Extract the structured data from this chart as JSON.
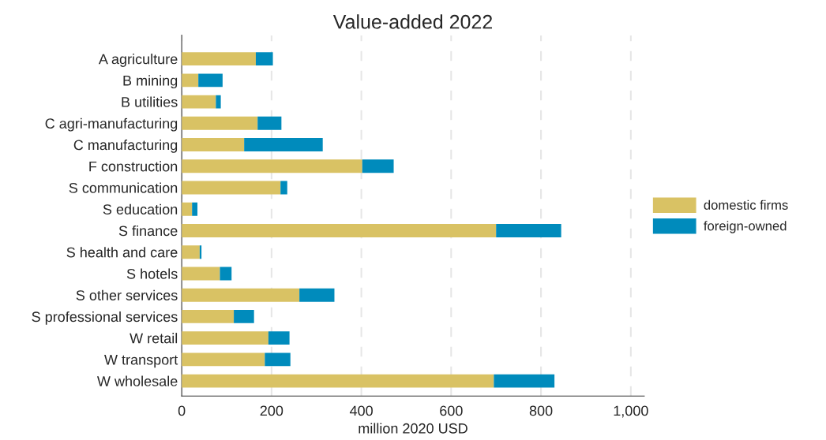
{
  "chart_data": {
    "type": "bar",
    "orientation": "horizontal",
    "stacked": true,
    "title": "Value-added 2022",
    "xlabel": "million 2020 USD",
    "categories": [
      "A agriculture",
      "B mining",
      "B utilities",
      "C agri-manufacturing",
      "C manufacturing",
      "F construction",
      "S communication",
      "S education",
      "S finance",
      "S health and care",
      "S hotels",
      "S other services",
      "S professional services",
      "W retail",
      "W transport",
      "W wholesale"
    ],
    "series": [
      {
        "name": "domestic firms",
        "color": "#d9c264",
        "values": [
          165,
          37,
          76,
          169,
          139,
          402,
          220,
          23,
          700,
          40,
          85,
          262,
          116,
          193,
          185,
          695
        ]
      },
      {
        "name": "foreign-owned",
        "color": "#008bbc",
        "values": [
          38,
          54,
          11,
          53,
          175,
          70,
          15,
          12,
          145,
          4,
          26,
          78,
          45,
          47,
          57,
          135
        ]
      }
    ],
    "xlim": [
      0,
      1030
    ],
    "xticks": [
      0,
      200,
      400,
      600,
      800,
      {
        "value": 1000,
        "label": "1,000"
      }
    ],
    "grid": "x",
    "legend": "right"
  }
}
